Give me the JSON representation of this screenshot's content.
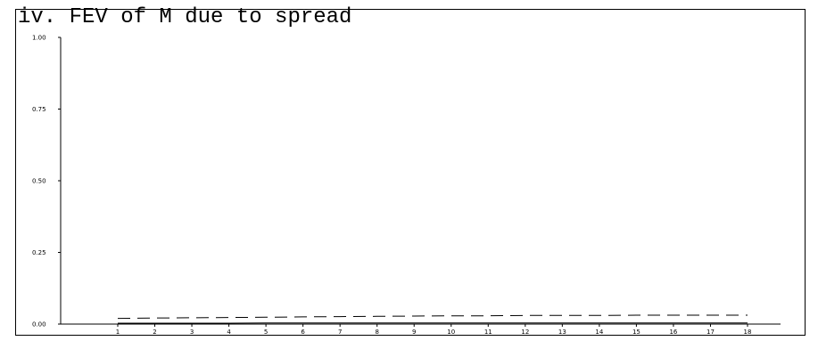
{
  "chart_data": {
    "type": "line",
    "title": "iv. FEV of M due to spread",
    "xlabel": "",
    "ylabel": "",
    "x": [
      1,
      2,
      3,
      4,
      5,
      6,
      7,
      8,
      9,
      10,
      11,
      12,
      13,
      14,
      15,
      16,
      17,
      18
    ],
    "x_tick_labels": [
      "1",
      "2",
      "3",
      "4",
      "5",
      "6",
      "7",
      "8",
      "9",
      "10",
      "11",
      "12",
      "13",
      "14",
      "15",
      "16",
      "17",
      "18"
    ],
    "y_tick_labels": [
      "0.00",
      "0.25",
      "0.50",
      "0.75",
      "1.00"
    ],
    "y_ticks": [
      0.0,
      0.25,
      0.5,
      0.75,
      1.0
    ],
    "ylim": [
      0,
      1
    ],
    "xlim": [
      1,
      18
    ],
    "grid": false,
    "legend": "none",
    "series": [
      {
        "style": "solid",
        "values": [
          0.003,
          0.003,
          0.003,
          0.003,
          0.004,
          0.004,
          0.004,
          0.004,
          0.004,
          0.004,
          0.004,
          0.004,
          0.004,
          0.004,
          0.004,
          0.004,
          0.004,
          0.004
        ]
      },
      {
        "style": "dashed",
        "values": [
          0.02,
          0.021,
          0.022,
          0.023,
          0.024,
          0.025,
          0.026,
          0.027,
          0.028,
          0.029,
          0.029,
          0.03,
          0.03,
          0.03,
          0.031,
          0.031,
          0.031,
          0.031
        ]
      }
    ],
    "colors": {
      "axis": "#000000",
      "line": "#000000"
    }
  }
}
